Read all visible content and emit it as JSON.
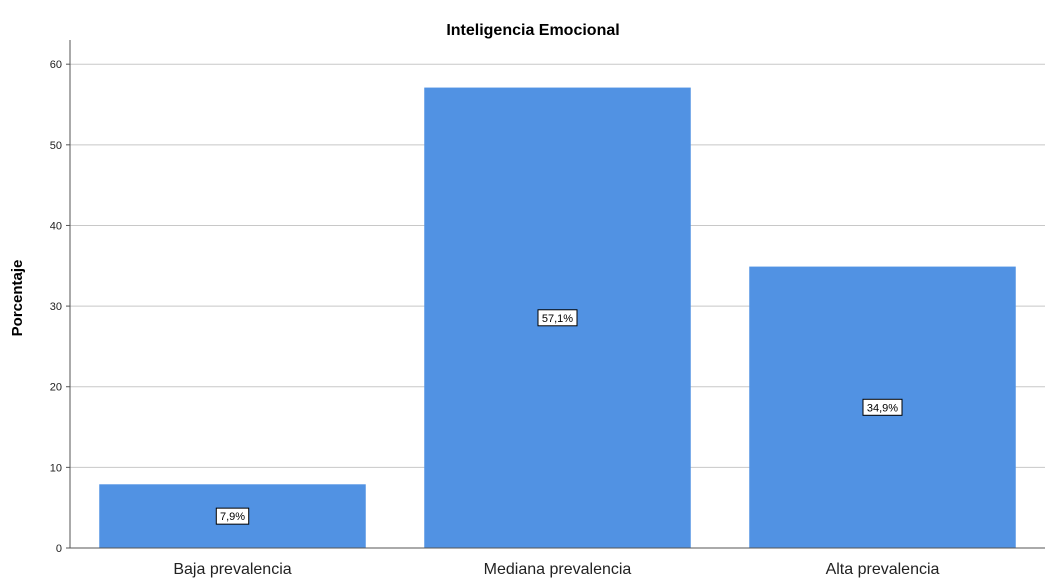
{
  "chart_data": {
    "type": "bar",
    "title": "Inteligencia Emocional",
    "xlabel": "",
    "ylabel": "Porcentaje",
    "categories": [
      "Baja prevalencia",
      "Mediana prevalencia",
      "Alta prevalencia"
    ],
    "values": [
      7.9,
      57.1,
      34.9
    ],
    "data_labels": [
      "7,9%",
      "57,1%",
      "34,9%"
    ],
    "ylim": [
      0,
      63
    ],
    "yticks": [
      "0",
      "10",
      "20",
      "30",
      "40",
      "50",
      "60"
    ],
    "ytick_values": [
      0,
      10,
      20,
      30,
      40,
      50,
      60
    ],
    "grid": true,
    "legend": "none",
    "bar_color": "#5192e3",
    "grid_color": "#c8c8c8"
  }
}
